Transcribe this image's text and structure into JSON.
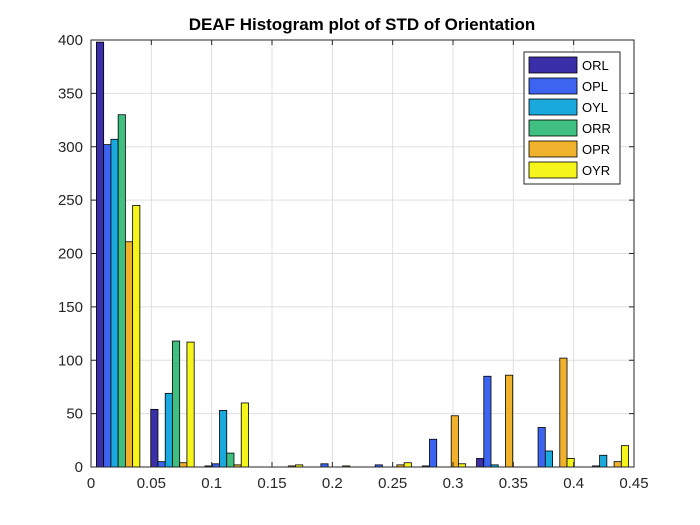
{
  "chart_data": {
    "type": "bar",
    "title": "DEAF Histogram plot of STD of Orientation",
    "xlabel": "",
    "ylabel": "",
    "xlim": [
      0,
      0.45
    ],
    "ylim": [
      0,
      400
    ],
    "xticks": [
      "0",
      "0.05",
      "0.1",
      "0.15",
      "0.2",
      "0.25",
      "0.3",
      "0.35",
      "0.4",
      "0.45"
    ],
    "yticks": [
      "0",
      "50",
      "100",
      "150",
      "200",
      "250",
      "300",
      "350",
      "400"
    ],
    "grid": true,
    "legend_position": "top-right",
    "bin_centers": [
      0.0225,
      0.0675,
      0.1125,
      0.1575,
      0.2025,
      0.2475,
      0.2925,
      0.3375,
      0.3825,
      0.4275
    ],
    "series": [
      {
        "name": "ORL",
        "color": "#3a2fa8",
        "values": [
          398,
          54,
          1,
          0,
          0,
          0,
          1,
          8,
          0,
          0
        ]
      },
      {
        "name": "OPL",
        "color": "#3c64f0",
        "values": [
          302,
          5,
          3,
          0,
          3,
          2,
          26,
          85,
          37,
          1
        ]
      },
      {
        "name": "OYL",
        "color": "#1aa9dc",
        "values": [
          307,
          69,
          53,
          0,
          0,
          0,
          0,
          2,
          15,
          11
        ]
      },
      {
        "name": "ORR",
        "color": "#3fc080",
        "values": [
          330,
          118,
          13,
          0,
          0,
          0,
          0,
          0,
          0,
          0
        ]
      },
      {
        "name": "OPR",
        "color": "#f0b22c",
        "values": [
          211,
          4,
          2,
          1,
          1,
          2,
          48,
          86,
          102,
          5
        ]
      },
      {
        "name": "OYR",
        "color": "#f5f51c",
        "values": [
          245,
          117,
          60,
          2,
          0,
          4,
          3,
          0,
          8,
          20
        ]
      }
    ]
  }
}
